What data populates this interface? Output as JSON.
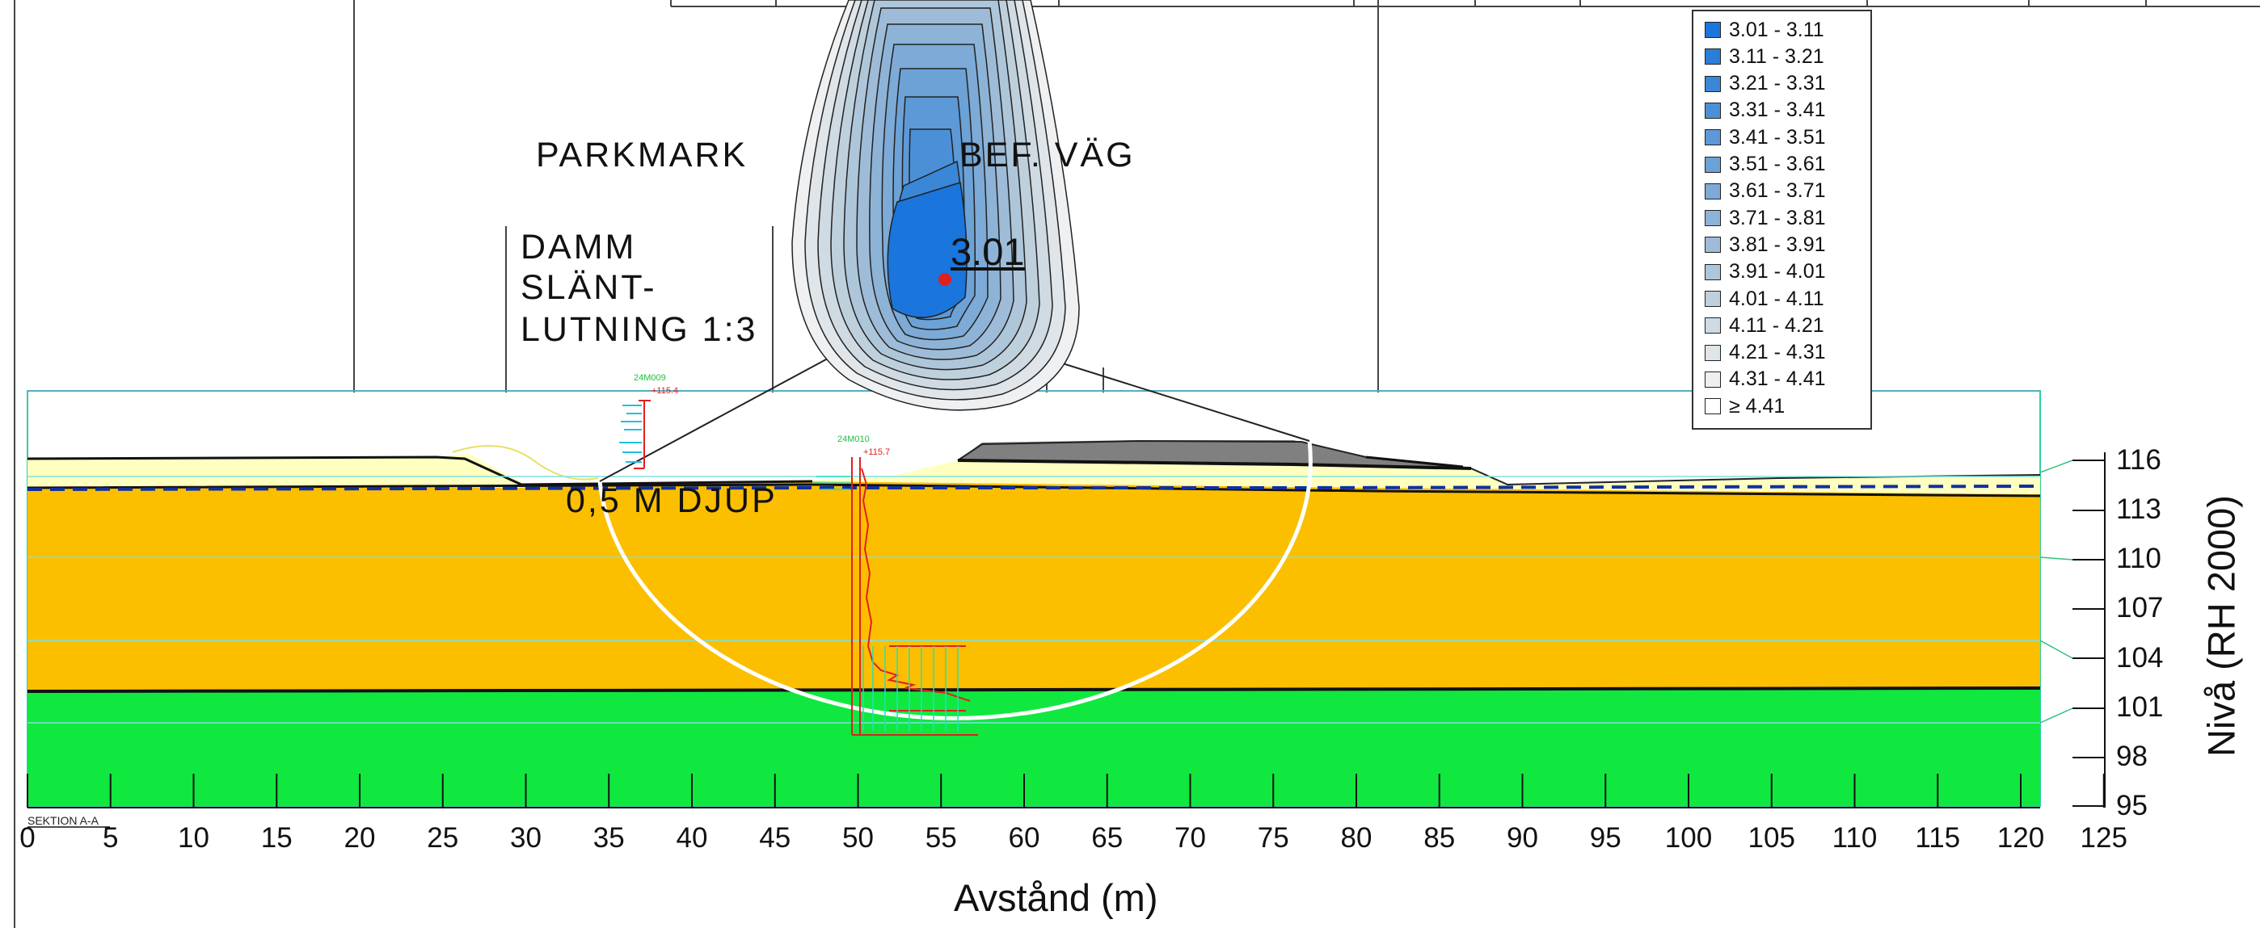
{
  "section_label": "SEKTION A-A",
  "notes": {
    "parkmark": "PARKMARK",
    "bef_vag": "BEF. VÄG",
    "damm": "DAMM",
    "slant": "SLÄNT-",
    "lutning": "LUTNING 1:3",
    "djup": "0,5 M DJUP"
  },
  "factor_of_safety": "3.01",
  "boreholes": [
    {
      "id": "24M009",
      "level": "+115.4"
    },
    {
      "id": "24M010",
      "level": "+115.7"
    }
  ],
  "legend": [
    {
      "label": "3.01 - 3.11",
      "color": "#1a75dc"
    },
    {
      "label": "3.11 - 3.21",
      "color": "#2a7ed9"
    },
    {
      "label": "3.21 - 3.31",
      "color": "#3a87d8"
    },
    {
      "label": "3.31 - 3.41",
      "color": "#4b90d7"
    },
    {
      "label": "3.41 - 3.51",
      "color": "#5c99d6"
    },
    {
      "label": "3.51 - 3.61",
      "color": "#6ca2d6"
    },
    {
      "label": "3.61 - 3.71",
      "color": "#7daad6"
    },
    {
      "label": "3.71 - 3.81",
      "color": "#8db3d7"
    },
    {
      "label": "3.81 - 3.91",
      "color": "#9ebcd8"
    },
    {
      "label": "3.91 - 4.01",
      "color": "#aec6da"
    },
    {
      "label": "4.01 - 4.11",
      "color": "#bfd0dd"
    },
    {
      "label": "4.11 - 4.21",
      "color": "#cfdae2"
    },
    {
      "label": "4.21 - 4.31",
      "color": "#dfe5e9"
    },
    {
      "label": "4.31 - 4.41",
      "color": "#eef0f2"
    },
    {
      "label": "≥ 4.41",
      "color": "#ffffff"
    }
  ],
  "axes": {
    "x_label": "Avstånd (m)",
    "y_label": "Nivå (RH 2000)",
    "x_ticks": [
      "0",
      "5",
      "10",
      "15",
      "20",
      "25",
      "30",
      "35",
      "40",
      "45",
      "50",
      "55",
      "60",
      "65",
      "70",
      "75",
      "80",
      "85",
      "90",
      "95",
      "100",
      "105",
      "110",
      "115",
      "120",
      "125"
    ],
    "y_ticks": [
      "116",
      "113",
      "110",
      "107",
      "104",
      "101",
      "98",
      "95"
    ]
  },
  "colors": {
    "fill_yellow": "#ffffc0",
    "clay_orange": "#fbbf00",
    "till_green": "#10e840",
    "road_gray": "#808080",
    "grid_cyan": "#80e0e0",
    "slip_circle": "#ffffff",
    "water_line": "#1030a0"
  }
}
